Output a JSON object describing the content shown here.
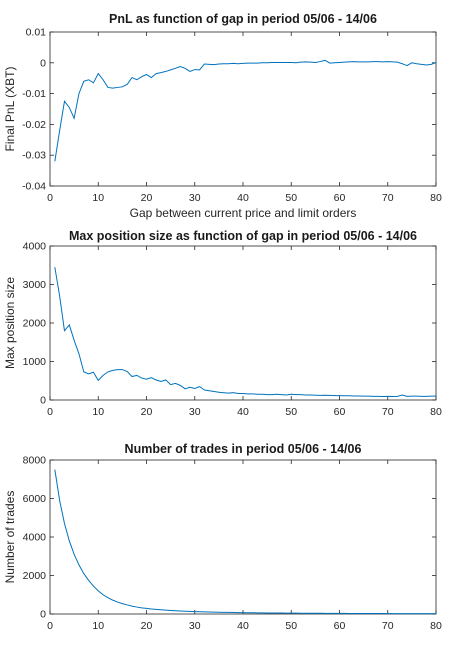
{
  "chart_data": [
    {
      "type": "line",
      "title": "PnL as function of gap in period 05/06 - 14/06",
      "xlabel": "Gap between current price and limit orders",
      "ylabel": "Final PnL (XBT)",
      "xlim": [
        0,
        80
      ],
      "ylim": [
        -0.04,
        0.01
      ],
      "xticks": [
        "0",
        "10",
        "20",
        "30",
        "40",
        "50",
        "60",
        "70",
        "80"
      ],
      "yticks": [
        "-0.04",
        "-0.03",
        "-0.02",
        "-0.01",
        "0",
        "0.01"
      ],
      "grid": false,
      "color": "#0072BD",
      "x": [
        1,
        2,
        3,
        4,
        5,
        6,
        7,
        8,
        9,
        10,
        11,
        12,
        13,
        14,
        15,
        16,
        17,
        18,
        19,
        20,
        21,
        22,
        23,
        24,
        25,
        26,
        27,
        28,
        29,
        30,
        31,
        32,
        33,
        34,
        35,
        36,
        37,
        38,
        39,
        40,
        41,
        42,
        43,
        44,
        45,
        46,
        47,
        48,
        49,
        50,
        51,
        52,
        53,
        54,
        55,
        56,
        57,
        58,
        59,
        60,
        61,
        62,
        63,
        64,
        65,
        66,
        67,
        68,
        69,
        70,
        71,
        72,
        73,
        74,
        75,
        76,
        77,
        78,
        79,
        80
      ],
      "y": [
        -0.032,
        -0.022,
        -0.0125,
        -0.0145,
        -0.018,
        -0.01,
        -0.006,
        -0.0055,
        -0.0065,
        -0.0035,
        -0.0055,
        -0.008,
        -0.0082,
        -0.008,
        -0.0078,
        -0.007,
        -0.0048,
        -0.0055,
        -0.0045,
        -0.0038,
        -0.0048,
        -0.0035,
        -0.0032,
        -0.0028,
        -0.0023,
        -0.0018,
        -0.0012,
        -0.0018,
        -0.0028,
        -0.0022,
        -0.0023,
        -0.0004,
        -0.0005,
        -0.0006,
        -0.0004,
        -0.0003,
        -0.0003,
        -0.0002,
        -0.0003,
        -0.0002,
        -0.0001,
        -0.0001,
        -0.0001,
        0.0,
        0.0,
        0.0001,
        0.0001,
        0.0001,
        0.0001,
        0.0001,
        0.0,
        0.0002,
        0.0003,
        0.0002,
        0.0001,
        0.0004,
        0.0008,
        -0.0001,
        0.0,
        0.0001,
        0.0002,
        0.0003,
        0.0004,
        0.0003,
        0.0003,
        0.0003,
        0.0004,
        0.0004,
        0.0003,
        0.0004,
        0.0003,
        0.0002,
        -0.0003,
        -0.0009,
        0.0,
        -0.0003,
        -0.0005,
        -0.0007,
        -0.0005,
        0.0001
      ]
    },
    {
      "type": "line",
      "title": "Max position size as function of gap in period 05/06 - 14/06",
      "xlabel": "",
      "ylabel": "Max position size",
      "xlim": [
        0,
        80
      ],
      "ylim": [
        0,
        4000
      ],
      "xticks": [
        "0",
        "10",
        "20",
        "30",
        "40",
        "50",
        "60",
        "70",
        "80"
      ],
      "yticks": [
        "0",
        "1000",
        "2000",
        "3000",
        "4000"
      ],
      "grid": false,
      "color": "#0072BD",
      "x": [
        1,
        2,
        3,
        4,
        5,
        6,
        7,
        8,
        9,
        10,
        11,
        12,
        13,
        14,
        15,
        16,
        17,
        18,
        19,
        20,
        21,
        22,
        23,
        24,
        25,
        26,
        27,
        28,
        29,
        30,
        31,
        32,
        33,
        34,
        35,
        36,
        37,
        38,
        39,
        40,
        41,
        42,
        43,
        44,
        45,
        46,
        47,
        48,
        49,
        50,
        51,
        52,
        53,
        54,
        55,
        56,
        57,
        58,
        59,
        60,
        61,
        62,
        63,
        64,
        65,
        66,
        67,
        68,
        69,
        70,
        71,
        72,
        73,
        74,
        75,
        76,
        77,
        78,
        79,
        80
      ],
      "y": [
        3450,
        2700,
        1800,
        1950,
        1550,
        1200,
        730,
        680,
        720,
        510,
        640,
        730,
        770,
        790,
        790,
        740,
        610,
        640,
        570,
        540,
        580,
        520,
        480,
        520,
        400,
        430,
        380,
        290,
        330,
        300,
        350,
        260,
        240,
        220,
        200,
        190,
        180,
        190,
        170,
        170,
        160,
        160,
        150,
        150,
        140,
        140,
        150,
        140,
        130,
        150,
        140,
        140,
        130,
        130,
        125,
        120,
        125,
        120,
        115,
        115,
        110,
        110,
        105,
        105,
        100,
        100,
        95,
        95,
        90,
        95,
        90,
        95,
        130,
        95,
        100,
        100,
        95,
        95,
        100,
        100
      ]
    },
    {
      "type": "line",
      "title": "Number of trades in period 05/06 - 14/06",
      "xlabel": "",
      "ylabel": "Number of trades",
      "xlim": [
        0,
        80
      ],
      "ylim": [
        0,
        8000
      ],
      "xticks": [
        "0",
        "10",
        "20",
        "30",
        "40",
        "50",
        "60",
        "70",
        "80"
      ],
      "yticks": [
        "0",
        "2000",
        "4000",
        "6000",
        "8000"
      ],
      "grid": false,
      "color": "#0072BD",
      "x": [
        1,
        2,
        3,
        4,
        5,
        6,
        7,
        8,
        9,
        10,
        11,
        12,
        13,
        14,
        15,
        16,
        17,
        18,
        19,
        20,
        21,
        22,
        23,
        24,
        25,
        26,
        27,
        28,
        29,
        30,
        31,
        32,
        33,
        34,
        35,
        36,
        37,
        38,
        39,
        40,
        41,
        42,
        43,
        44,
        45,
        46,
        47,
        48,
        49,
        50,
        51,
        52,
        53,
        54,
        55,
        56,
        57,
        58,
        59,
        60,
        61,
        62,
        63,
        64,
        65,
        66,
        67,
        68,
        69,
        70,
        71,
        72,
        73,
        74,
        75,
        76,
        77,
        78,
        79,
        80
      ],
      "y": [
        7500,
        5900,
        4700,
        3800,
        3100,
        2550,
        2100,
        1750,
        1450,
        1200,
        1000,
        850,
        720,
        620,
        540,
        470,
        410,
        360,
        320,
        290,
        260,
        240,
        220,
        200,
        185,
        170,
        155,
        145,
        135,
        125,
        118,
        110,
        104,
        98,
        92,
        87,
        82,
        78,
        74,
        70,
        67,
        64,
        61,
        58,
        55,
        53,
        51,
        49,
        47,
        45,
        43,
        41,
        40,
        38,
        37,
        36,
        35,
        33,
        32,
        31,
        30,
        29,
        28,
        28,
        27,
        26,
        25,
        24,
        24,
        23,
        22,
        22,
        21,
        21,
        20,
        20,
        19,
        19,
        18,
        18
      ]
    }
  ]
}
